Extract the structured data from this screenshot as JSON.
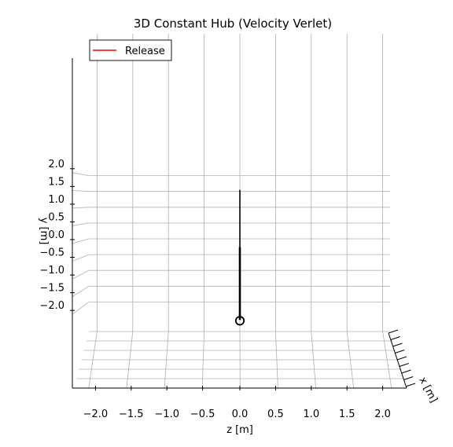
{
  "chart_data": {
    "type": "line",
    "title": "3D Constant Hub (Velocity Verlet)",
    "xlabel": "z [m]",
    "ylabel": "y [m]",
    "depth_label": "x [m]",
    "xticks": [
      "−2.0",
      "−1.5",
      "−1.0",
      "−0.5",
      "0.0",
      "0.5",
      "1.0",
      "1.5",
      "2.0"
    ],
    "yticks": [
      "−2.0",
      "−1.5",
      "−1.0",
      "−0.5",
      "0.0",
      "0.5",
      "1.0",
      "1.5",
      "2.0"
    ],
    "xlim": [
      -2.3,
      2.3
    ],
    "ylim": [
      -2.3,
      2.3
    ],
    "grid": true,
    "legend_position": "top-left",
    "series": [
      {
        "name": "Release",
        "color": "#ff0000",
        "points": []
      }
    ],
    "rod": {
      "color": "#000000",
      "z": 0.0,
      "y_start": -1.25,
      "y_end": 1.6,
      "y_tip_end": 2.05
    },
    "hub_marker": {
      "z": 0.0,
      "y": -1.25,
      "shape": "open-circle"
    }
  }
}
